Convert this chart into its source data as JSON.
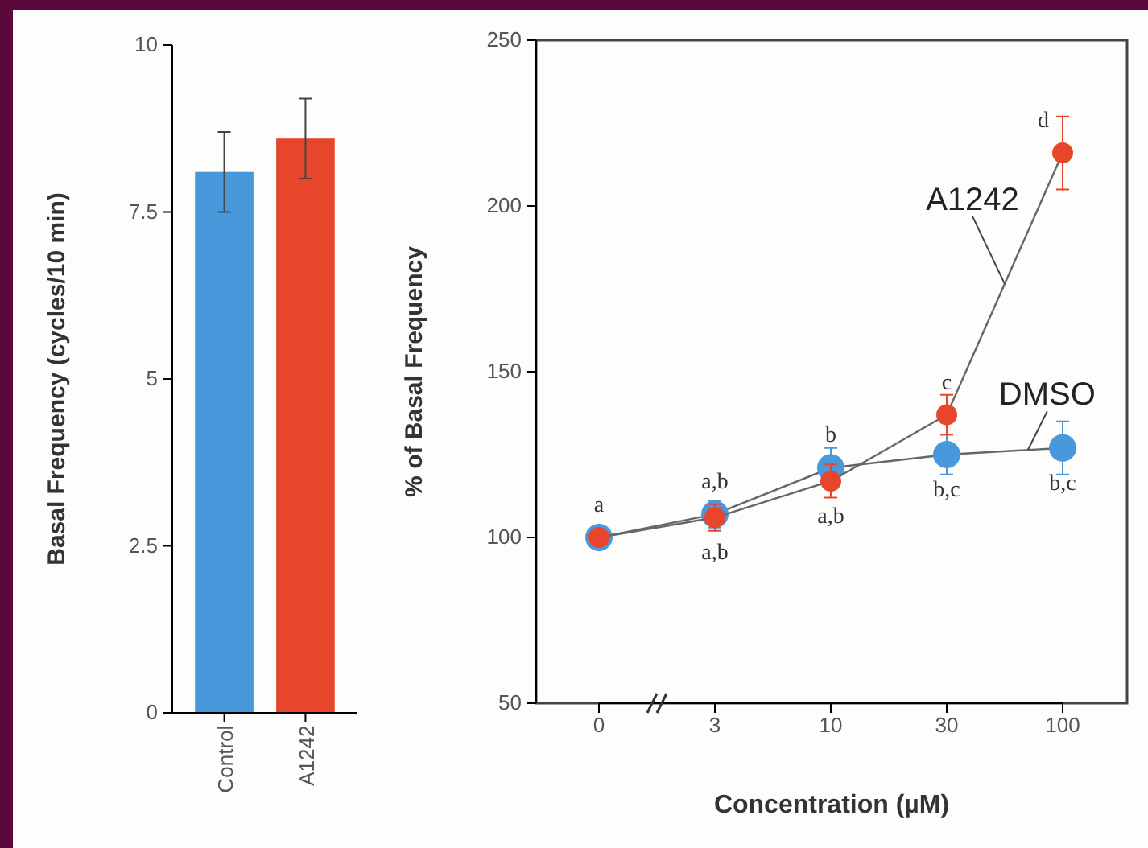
{
  "chart_data": [
    {
      "type": "bar",
      "ylabel": "Basal Frequency (cycles/10 min)",
      "categories": [
        "Control",
        "A1242"
      ],
      "values": [
        8.1,
        8.6
      ],
      "colors": [
        "#4a98dc",
        "#e8462c"
      ],
      "errors": [
        0.6,
        0.6
      ],
      "ylim": [
        0,
        10
      ],
      "yticks": [
        0,
        2.5,
        5,
        7.5,
        10
      ],
      "grid": false
    },
    {
      "type": "line",
      "xlabel": "Concentration (µM)",
      "ylabel": "% of Basal Frequency",
      "categories": [
        "0",
        "3",
        "10",
        "30",
        "100"
      ],
      "ylim": [
        50,
        250
      ],
      "yticks": [
        50,
        100,
        150,
        200,
        250
      ],
      "grid": false,
      "marker": "circle",
      "line_style": "solid",
      "series": [
        {
          "name": "DMSO",
          "color": "#4a98dc",
          "values": [
            100,
            107,
            121,
            125,
            127
          ],
          "errors": [
            null,
            4,
            6,
            6,
            8
          ]
        },
        {
          "name": "A1242",
          "color": "#e8462c",
          "values": [
            100,
            106,
            117,
            137,
            216
          ],
          "errors": [
            null,
            4,
            5,
            6,
            11
          ]
        }
      ],
      "annotations": [
        {
          "text": "a",
          "x": "0",
          "y": 100
        },
        {
          "text": "a,b",
          "x": "3",
          "y": 107
        },
        {
          "text": "a,b",
          "x": "3",
          "y": 106
        },
        {
          "text": "b",
          "x": "10",
          "y": 121
        },
        {
          "text": "a,b",
          "x": "10",
          "y": 117
        },
        {
          "text": "c",
          "x": "30",
          "y": 137
        },
        {
          "text": "b,c",
          "x": "30",
          "y": 125
        },
        {
          "text": "d",
          "x": "100",
          "y": 216
        },
        {
          "text": "b,c",
          "x": "100",
          "y": 127
        }
      ]
    }
  ]
}
